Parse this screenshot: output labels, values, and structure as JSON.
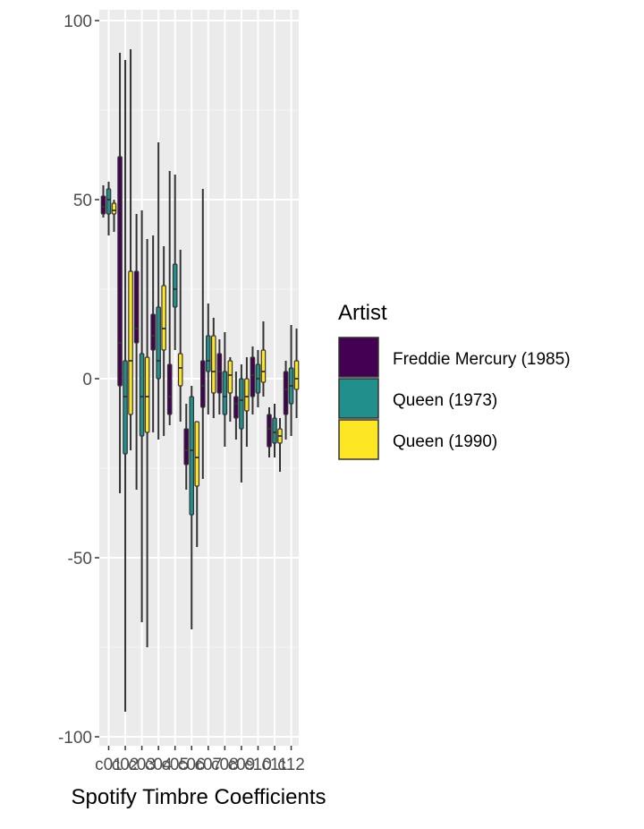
{
  "chart_data": {
    "type": "boxplot",
    "xlabel": "Spotify Timbre Coefficients",
    "ylabel": "",
    "ylim": [
      -100,
      100
    ],
    "y_ticks": [
      -100,
      -50,
      0,
      50,
      100
    ],
    "y_tick_labels": [
      "-100",
      "-50",
      "0",
      "50",
      "100"
    ],
    "categories": [
      "c01",
      "c02",
      "c03",
      "c04",
      "c05",
      "c06",
      "c07",
      "c08",
      "c09",
      "c10",
      "c11",
      "c12"
    ],
    "grid": true,
    "legend": {
      "title": "Artist",
      "placement": "right",
      "entries": [
        {
          "label": "Freddie Mercury (1985)",
          "color": "#440154"
        },
        {
          "label": "Queen (1973)",
          "color": "#21908C"
        },
        {
          "label": "Queen (1990)",
          "color": "#FDE725"
        }
      ]
    },
    "series": [
      {
        "name": "Freddie Mercury (1985)",
        "color": "#440154",
        "boxes": [
          {
            "min": 45,
            "q1": 46,
            "median": 48,
            "q3": 51,
            "max": 54
          },
          {
            "min": -32,
            "q1": -2,
            "median": 10,
            "q3": 62,
            "max": 91
          },
          {
            "min": -31,
            "q1": 10,
            "median": 14,
            "q3": 30,
            "max": 46
          },
          {
            "min": -15,
            "q1": 8,
            "median": 12,
            "q3": 18,
            "max": 40
          },
          {
            "min": -13,
            "q1": -10,
            "median": -5,
            "q3": 4,
            "max": 58
          },
          {
            "min": -31,
            "q1": -24,
            "median": -20,
            "q3": -14,
            "max": -7
          },
          {
            "min": -28,
            "q1": -8,
            "median": -2,
            "q3": 5,
            "max": 53
          },
          {
            "min": -10,
            "q1": -4,
            "median": 2,
            "q3": 7,
            "max": 11
          },
          {
            "min": -17,
            "q1": -11,
            "median": -7,
            "q3": -5,
            "max": 2
          },
          {
            "min": -10,
            "q1": -5,
            "median": 1,
            "q3": 6,
            "max": 9
          },
          {
            "min": -22,
            "q1": -19,
            "median": -14,
            "q3": -10,
            "max": -8
          },
          {
            "min": -17,
            "q1": -10,
            "median": -3,
            "q3": 2,
            "max": 5
          }
        ]
      },
      {
        "name": "Queen (1973)",
        "color": "#21908C",
        "boxes": [
          {
            "min": 40,
            "q1": 46,
            "median": 50,
            "q3": 53,
            "max": 55
          },
          {
            "min": -93,
            "q1": -21,
            "median": -5,
            "q3": 5,
            "max": 89
          },
          {
            "min": -68,
            "q1": -16,
            "median": -5,
            "q3": 7,
            "max": 47
          },
          {
            "min": -17,
            "q1": 0,
            "median": 5,
            "q3": 20,
            "max": 66
          },
          {
            "min": 8,
            "q1": 20,
            "median": 25,
            "q3": 32,
            "max": 57
          },
          {
            "min": -70,
            "q1": -38,
            "median": -20,
            "q3": -5,
            "max": -2
          },
          {
            "min": -10,
            "q1": 2,
            "median": 5,
            "q3": 12,
            "max": 21
          },
          {
            "min": -19,
            "q1": -10,
            "median": -5,
            "q3": 2,
            "max": 13
          },
          {
            "min": -29,
            "q1": -14,
            "median": -6,
            "q3": 0,
            "max": 4
          },
          {
            "min": -8,
            "q1": -4,
            "median": 0,
            "q3": 4,
            "max": 8
          },
          {
            "min": -22,
            "q1": -18,
            "median": -15,
            "q3": -11,
            "max": -7
          },
          {
            "min": -16,
            "q1": -7,
            "median": -2,
            "q3": 3,
            "max": 15
          }
        ]
      },
      {
        "name": "Queen (1990)",
        "color": "#FDE725",
        "boxes": [
          {
            "min": 41,
            "q1": 46,
            "median": 47,
            "q3": 49,
            "max": 50
          },
          {
            "min": -20,
            "q1": -10,
            "median": 5,
            "q3": 30,
            "max": 92
          },
          {
            "min": -75,
            "q1": -15,
            "median": -5,
            "q3": 6,
            "max": 39
          },
          {
            "min": -16,
            "q1": 8,
            "median": 14,
            "q3": 26,
            "max": 37
          },
          {
            "min": -12,
            "q1": -2,
            "median": 3,
            "q3": 7,
            "max": 36
          },
          {
            "min": -47,
            "q1": -30,
            "median": -22,
            "q3": -12,
            "max": -12
          },
          {
            "min": -11,
            "q1": -4,
            "median": 2,
            "q3": 12,
            "max": 17
          },
          {
            "min": -12,
            "q1": -4,
            "median": 1,
            "q3": 5,
            "max": 6
          },
          {
            "min": -19,
            "q1": -9,
            "median": -5,
            "q3": 0,
            "max": 6
          },
          {
            "min": -5,
            "q1": -1,
            "median": 2,
            "q3": 8,
            "max": 16
          },
          {
            "min": -26,
            "q1": -18,
            "median": -16,
            "q3": -14,
            "max": -11
          },
          {
            "min": -11,
            "q1": -3,
            "median": 0,
            "q3": 5,
            "max": 14
          }
        ]
      }
    ]
  }
}
